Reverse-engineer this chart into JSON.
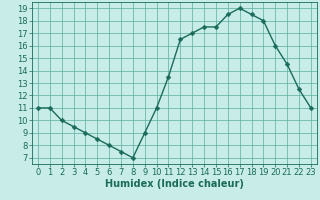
{
  "x": [
    0,
    1,
    2,
    3,
    4,
    5,
    6,
    7,
    8,
    9,
    10,
    11,
    12,
    13,
    14,
    15,
    16,
    17,
    18,
    19,
    20,
    21,
    22,
    23
  ],
  "y": [
    11,
    11,
    10,
    9.5,
    9,
    8.5,
    8,
    7.5,
    7,
    9,
    11,
    13.5,
    16.5,
    17,
    17.5,
    17.5,
    18.5,
    19,
    18.5,
    18,
    16,
    14.5,
    12.5,
    11
  ],
  "line_color": "#1a6b5a",
  "marker_color": "#1a6b5a",
  "bg_color": "#c8ece8",
  "grid_color": "#5aada0",
  "xlabel": "Humidex (Indice chaleur)",
  "xlim": [
    -0.5,
    23.5
  ],
  "ylim": [
    6.5,
    19.5
  ],
  "yticks": [
    7,
    8,
    9,
    10,
    11,
    12,
    13,
    14,
    15,
    16,
    17,
    18,
    19
  ],
  "xticks": [
    0,
    1,
    2,
    3,
    4,
    5,
    6,
    7,
    8,
    9,
    10,
    11,
    12,
    13,
    14,
    15,
    16,
    17,
    18,
    19,
    20,
    21,
    22,
    23
  ],
  "xlabel_fontsize": 7,
  "tick_fontsize": 6,
  "marker_size": 2.5,
  "line_width": 1.0
}
